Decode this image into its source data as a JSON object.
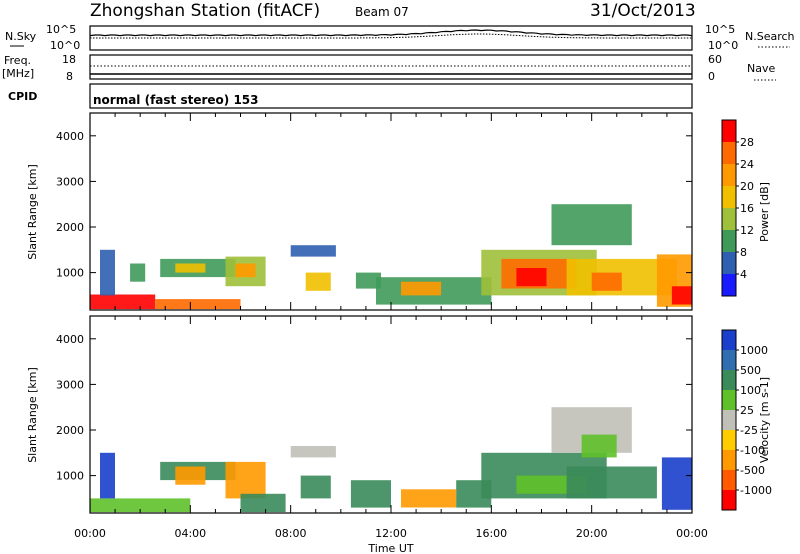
{
  "header": {
    "title": "Zhongshan Station (fitACF)",
    "beam": "Beam 07",
    "date": "31/Oct/2013"
  },
  "panel_noise": {
    "left_label": "N.Sky",
    "right_label": "N.Search",
    "left_ticks": [
      "10^5",
      "10^0"
    ],
    "right_ticks": [
      "10^5",
      "10^0"
    ]
  },
  "panel_freq": {
    "left_label_1": "Freq.",
    "left_label_2": "[MHz]",
    "right_label": "Nave",
    "left_ticks": [
      "18",
      "8"
    ],
    "right_ticks": [
      "60",
      "0"
    ]
  },
  "panel_cpid": {
    "label": "CPID",
    "text": "normal (fast stereo) 153"
  },
  "colorbar_power": {
    "title": "Power [dB]",
    "ticks": [
      "28",
      "24",
      "20",
      "16",
      "12",
      "8",
      "4"
    ],
    "colors": [
      "#ff0000",
      "#ff6a00",
      "#ff9900",
      "#f0c000",
      "#9fc03a",
      "#3f9a5a",
      "#2f5fb0",
      "#1a1aff"
    ]
  },
  "colorbar_velocity": {
    "title": "Velocity [m s-1]",
    "ticks": [
      "1000",
      "500",
      "100",
      "25",
      "-25",
      "-100",
      "-500",
      "-1000"
    ],
    "colors": [
      "#1a3fcc",
      "#2f6fb0",
      "#3a8a5a",
      "#5fc02a",
      "#c0c0b8",
      "#ffcc00",
      "#ff9900",
      "#ff5a00",
      "#ff0000"
    ]
  },
  "x_axis": {
    "label": "Time UT",
    "ticks": [
      "00:00",
      "04:00",
      "08:00",
      "12:00",
      "16:00",
      "20:00",
      "00:00"
    ]
  },
  "chart_data": [
    {
      "type": "heatmap",
      "name": "power",
      "ylabel": "Slant Range [km]",
      "xlabel": "",
      "y_ticks": [
        1000,
        2000,
        3000,
        4000
      ],
      "ylim": [
        180,
        4500
      ],
      "xlim": [
        0,
        24
      ],
      "color_title": "Power [dB]",
      "bands": [
        {
          "t0": 0.0,
          "t1": 2.6,
          "r0": 200,
          "r1": 520,
          "c": 0
        },
        {
          "t0": 2.6,
          "t1": 6.0,
          "r0": 200,
          "r1": 420,
          "c": 1
        },
        {
          "t0": 0.4,
          "t1": 1.0,
          "r0": 500,
          "r1": 1500,
          "c": 6
        },
        {
          "t0": 1.6,
          "t1": 2.2,
          "r0": 800,
          "r1": 1200,
          "c": 5
        },
        {
          "t0": 2.8,
          "t1": 5.8,
          "r0": 900,
          "r1": 1300,
          "c": 5
        },
        {
          "t0": 3.4,
          "t1": 4.6,
          "r0": 1000,
          "r1": 1200,
          "c": 3
        },
        {
          "t0": 5.4,
          "t1": 7.0,
          "r0": 700,
          "r1": 1350,
          "c": 4
        },
        {
          "t0": 5.8,
          "t1": 6.6,
          "r0": 900,
          "r1": 1200,
          "c": 2
        },
        {
          "t0": 8.0,
          "t1": 9.8,
          "r0": 1350,
          "r1": 1600,
          "c": 6
        },
        {
          "t0": 8.6,
          "t1": 9.6,
          "r0": 600,
          "r1": 1000,
          "c": 3
        },
        {
          "t0": 10.6,
          "t1": 11.6,
          "r0": 650,
          "r1": 1000,
          "c": 5
        },
        {
          "t0": 11.4,
          "t1": 16.0,
          "r0": 300,
          "r1": 900,
          "c": 5
        },
        {
          "t0": 12.4,
          "t1": 14.0,
          "r0": 500,
          "r1": 800,
          "c": 2
        },
        {
          "t0": 15.6,
          "t1": 20.2,
          "r0": 500,
          "r1": 1500,
          "c": 4
        },
        {
          "t0": 16.4,
          "t1": 19.4,
          "r0": 650,
          "r1": 1300,
          "c": 1
        },
        {
          "t0": 17.0,
          "t1": 18.2,
          "r0": 700,
          "r1": 1100,
          "c": 0
        },
        {
          "t0": 19.0,
          "t1": 23.4,
          "r0": 500,
          "r1": 1300,
          "c": 3
        },
        {
          "t0": 20.0,
          "t1": 21.2,
          "r0": 600,
          "r1": 1000,
          "c": 1
        },
        {
          "t0": 18.4,
          "t1": 21.6,
          "r0": 1600,
          "r1": 2500,
          "c": 5
        },
        {
          "t0": 22.6,
          "t1": 24.0,
          "r0": 250,
          "r1": 1400,
          "c": 2
        },
        {
          "t0": 23.2,
          "t1": 24.0,
          "r0": 300,
          "r1": 700,
          "c": 0
        }
      ]
    },
    {
      "type": "heatmap",
      "name": "velocity",
      "ylabel": "Slant Range [km]",
      "xlabel": "Time UT",
      "y_ticks": [
        1000,
        2000,
        3000,
        4000
      ],
      "ylim": [
        180,
        4500
      ],
      "xlim": [
        0,
        24
      ],
      "color_title": "Velocity [m s-1]",
      "bands": [
        {
          "t0": 0.0,
          "t1": 4.0,
          "r0": 200,
          "r1": 500,
          "c": 3
        },
        {
          "t0": 0.4,
          "t1": 1.0,
          "r0": 500,
          "r1": 1500,
          "c": 0
        },
        {
          "t0": 2.8,
          "t1": 5.8,
          "r0": 900,
          "r1": 1300,
          "c": 2
        },
        {
          "t0": 3.4,
          "t1": 4.6,
          "r0": 800,
          "r1": 1200,
          "c": 6
        },
        {
          "t0": 5.4,
          "t1": 7.0,
          "r0": 500,
          "r1": 1300,
          "c": 6
        },
        {
          "t0": 6.0,
          "t1": 7.8,
          "r0": 200,
          "r1": 600,
          "c": 2
        },
        {
          "t0": 8.0,
          "t1": 9.8,
          "r0": 1400,
          "r1": 1650,
          "c": 4
        },
        {
          "t0": 8.4,
          "t1": 9.6,
          "r0": 500,
          "r1": 1000,
          "c": 2
        },
        {
          "t0": 10.4,
          "t1": 12.0,
          "r0": 300,
          "r1": 900,
          "c": 2
        },
        {
          "t0": 12.4,
          "t1": 14.6,
          "r0": 300,
          "r1": 700,
          "c": 6
        },
        {
          "t0": 14.6,
          "t1": 16.0,
          "r0": 300,
          "r1": 900,
          "c": 2
        },
        {
          "t0": 15.6,
          "t1": 20.6,
          "r0": 500,
          "r1": 1500,
          "c": 2
        },
        {
          "t0": 17.0,
          "t1": 19.8,
          "r0": 600,
          "r1": 1000,
          "c": 3
        },
        {
          "t0": 19.0,
          "t1": 22.6,
          "r0": 500,
          "r1": 1200,
          "c": 2
        },
        {
          "t0": 18.4,
          "t1": 21.6,
          "r0": 1500,
          "r1": 2500,
          "c": 4
        },
        {
          "t0": 19.6,
          "t1": 21.0,
          "r0": 1400,
          "r1": 1900,
          "c": 3
        },
        {
          "t0": 22.8,
          "t1": 24.0,
          "r0": 250,
          "r1": 1400,
          "c": 0
        }
      ]
    }
  ]
}
